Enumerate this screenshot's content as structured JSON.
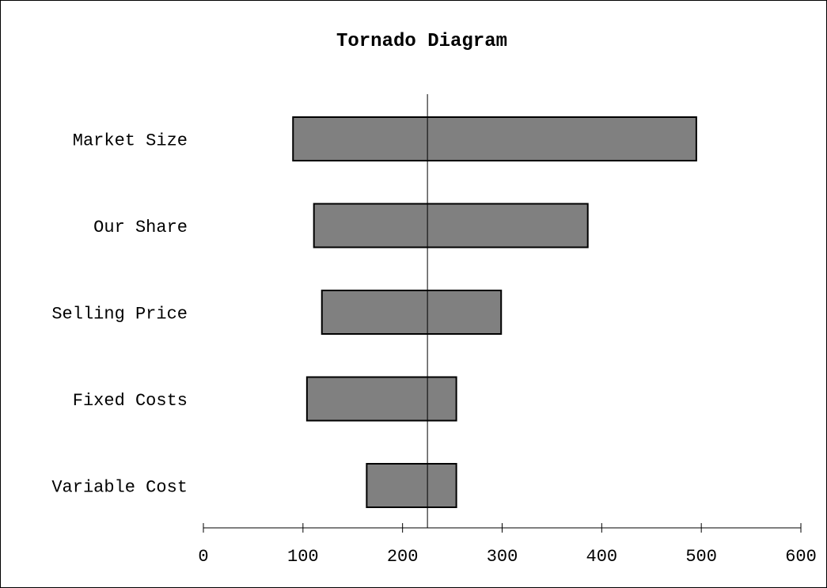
{
  "chart_data": {
    "type": "bar",
    "title": "Tornado Diagram",
    "xlabel": "",
    "ylabel": "",
    "baseline": 225,
    "xlim": [
      0,
      600
    ],
    "xticks": [
      "0",
      "100",
      "200",
      "300",
      "400",
      "500",
      "600"
    ],
    "xtick_values": [
      0,
      100,
      200,
      300,
      400,
      500,
      600
    ],
    "categories": [
      "Market Size",
      "Our Share",
      "Selling Price",
      "Fixed Costs",
      "Variable Cost"
    ],
    "low": [
      90,
      111,
      119,
      104,
      164
    ],
    "high": [
      495,
      386,
      299,
      254,
      254
    ],
    "bar_color": "#808080",
    "edge_color": "#000000",
    "grid": false,
    "legend": "none"
  }
}
